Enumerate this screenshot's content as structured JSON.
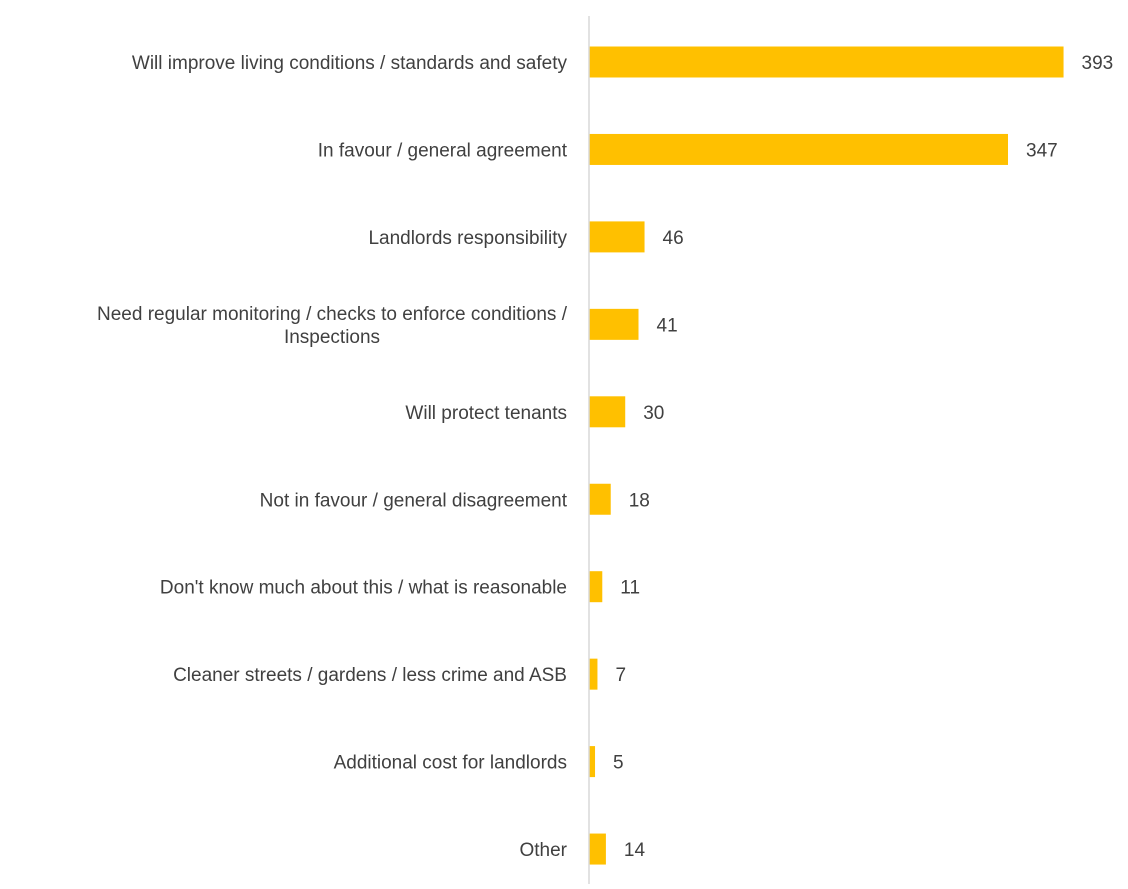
{
  "chart_data": {
    "type": "bar",
    "orientation": "horizontal",
    "categories": [
      [
        "Will improve living conditions / standards and safety"
      ],
      [
        "In favour / general agreement"
      ],
      [
        "Landlords responsibility"
      ],
      [
        "Need regular monitoring / checks to enforce conditions /",
        "Inspections"
      ],
      [
        "Will protect tenants"
      ],
      [
        "Not in favour / general disagreement"
      ],
      [
        "Don't know much about this / what is reasonable"
      ],
      [
        "Cleaner streets / gardens / less crime and ASB"
      ],
      [
        "Additional cost for landlords"
      ],
      [
        "Other"
      ]
    ],
    "values": [
      393,
      347,
      46,
      41,
      30,
      18,
      11,
      7,
      5,
      14
    ],
    "data_labels": true,
    "title": "",
    "xlabel": "",
    "ylabel": "",
    "xlim": [
      0,
      400
    ],
    "grid": false,
    "legend": "none",
    "bar_color": "#FFC000",
    "axis_color": "#D9D9D9",
    "text_color": "#404040"
  }
}
